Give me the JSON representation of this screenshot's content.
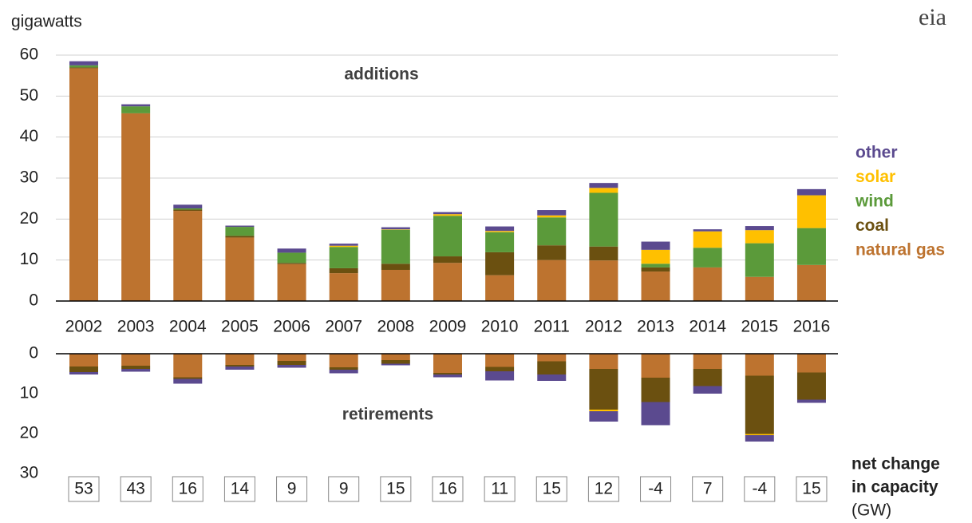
{
  "chart_data": {
    "type": "stacked_bar",
    "y_axis_label": "gigawatts",
    "logo": "eia",
    "categories": [
      "2002",
      "2003",
      "2004",
      "2005",
      "2006",
      "2007",
      "2008",
      "2009",
      "2010",
      "2011",
      "2012",
      "2013",
      "2014",
      "2015",
      "2016"
    ],
    "additions": {
      "label": "additions",
      "ylim": [
        0,
        60
      ],
      "yticks": [
        0,
        10,
        20,
        30,
        40,
        50,
        60
      ],
      "grid": true,
      "series": [
        {
          "name": "natural gas",
          "color": "#bd732f",
          "values": [
            56.8,
            45.8,
            22,
            15.5,
            9,
            6.8,
            7.6,
            9.3,
            6.3,
            10,
            9.9,
            7.2,
            8.2,
            5.9,
            8.8
          ]
        },
        {
          "name": "coal",
          "color": "#6b5010",
          "values": [
            0.2,
            0,
            0.3,
            0.4,
            0.3,
            1.2,
            1.5,
            1.6,
            5.6,
            3.6,
            3.4,
            1.0,
            0,
            0,
            0
          ]
        },
        {
          "name": "wind",
          "color": "#5b9a3a",
          "values": [
            0.5,
            1.7,
            0.3,
            2.2,
            2.5,
            5.2,
            8.3,
            9.9,
            4.9,
            6.8,
            13.1,
            0.9,
            4.8,
            8.2,
            9.0
          ]
        },
        {
          "name": "solar",
          "color": "#ffc000",
          "values": [
            0,
            0,
            0,
            0,
            0,
            0.3,
            0.1,
            0.4,
            0.3,
            0.5,
            1.2,
            3.4,
            4.0,
            3.2,
            8.0
          ]
        },
        {
          "name": "other",
          "color": "#5b4a8f",
          "values": [
            1.0,
            0.5,
            0.9,
            0.3,
            1.0,
            0.5,
            0.5,
            0.5,
            1.1,
            1.3,
            1.2,
            2.0,
            0.5,
            1.0,
            1.5
          ]
        }
      ]
    },
    "retirements": {
      "label": "retirements",
      "ylim": [
        0,
        30
      ],
      "yticks": [
        0,
        10,
        20,
        30
      ],
      "inverted": true,
      "series": [
        {
          "color": "#bd732f",
          "values": [
            3.2,
            3.0,
            5.9,
            2.8,
            1.8,
            3.4,
            1.6,
            4.8,
            3.3,
            1.9,
            3.8,
            6.0,
            3.8,
            5.5,
            4.7
          ]
        },
        {
          "color": "#6b5010",
          "values": [
            1.4,
            0.8,
            0.4,
            0.4,
            1.0,
            0.6,
            0.9,
            0.4,
            1.1,
            3.3,
            10.2,
            6.1,
            4.3,
            14.6,
            6.8
          ]
        },
        {
          "color": "#5b9a3a",
          "values": [
            0,
            0,
            0,
            0,
            0,
            0,
            0,
            0,
            0,
            0,
            0,
            0,
            0,
            0,
            0
          ]
        },
        {
          "color": "#ffc000",
          "values": [
            0,
            0,
            0,
            0,
            0,
            0,
            0,
            0,
            0,
            0,
            0.4,
            0,
            0,
            0.3,
            0
          ]
        },
        {
          "color": "#5b4a8f",
          "values": [
            0.6,
            0.7,
            1.2,
            0.8,
            0.7,
            0.9,
            0.4,
            0.7,
            2.3,
            1.6,
            2.6,
            5.8,
            1.9,
            1.6,
            0.8
          ]
        }
      ]
    },
    "net_change": {
      "label": [
        "net change",
        "in capacity",
        "(GW)"
      ],
      "values": [
        53,
        43,
        16,
        14,
        9,
        9,
        15,
        16,
        11,
        15,
        12,
        -4,
        7,
        -4,
        15
      ]
    }
  }
}
